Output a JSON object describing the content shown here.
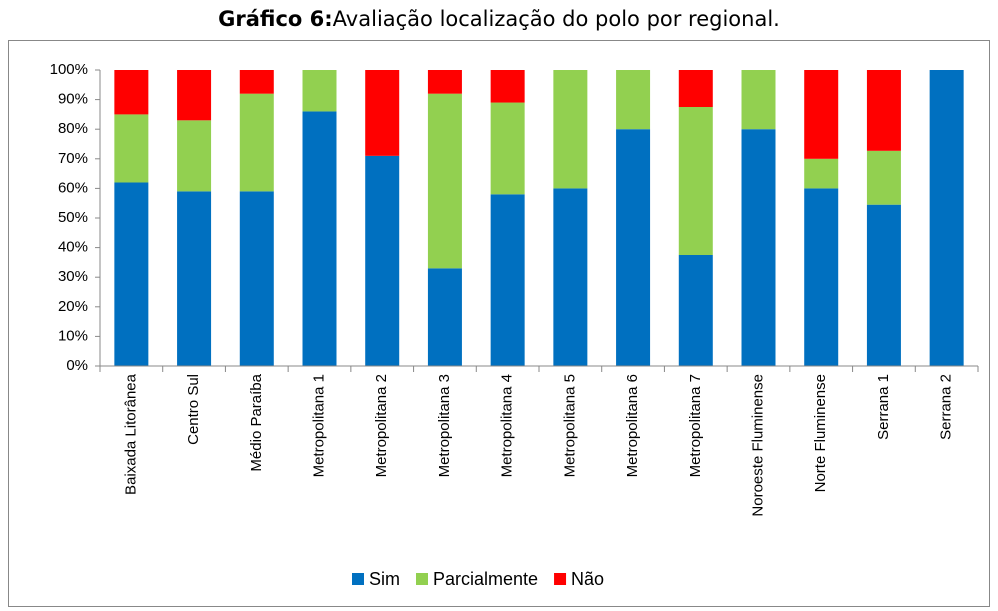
{
  "chart_data": {
    "type": "stacked_bar",
    "title_bold": "Gráfico 6:",
    "title": "Avaliação localização do polo por regional.",
    "categories": [
      "Baixada Litorânea",
      "Centro Sul",
      "Médio Paraíba",
      "Metropolitana 1",
      "Metropolitana 2",
      "Metropolitana 3",
      "Metropolitana 4",
      "Metropolitana 5",
      "Metropolitana 6",
      "Metropolitana 7",
      "Noroeste Fluminense",
      "Norte Fluminense",
      "Serrana 1",
      "Serrana 2"
    ],
    "series": [
      {
        "name": "Sim",
        "color": "#0070c0",
        "values": [
          62,
          59,
          59,
          86,
          71,
          33,
          58,
          60,
          80,
          37.5,
          80,
          60,
          54.5,
          100
        ]
      },
      {
        "name": "Parcialmente",
        "color": "#92d050",
        "values": [
          23,
          24,
          33,
          14,
          0,
          59,
          31,
          40,
          20,
          50,
          20,
          10,
          18.2,
          0
        ]
      },
      {
        "name": "Não",
        "color": "#ff0000",
        "values": [
          15,
          17,
          8,
          0,
          29,
          8,
          11,
          0,
          0,
          12.5,
          0,
          30,
          27.3,
          0
        ]
      }
    ],
    "ylim": [
      0,
      100
    ],
    "yticks": [
      {
        "value": 0,
        "label": "0%"
      },
      {
        "value": 10,
        "label": "10%"
      },
      {
        "value": 20,
        "label": "20%"
      },
      {
        "value": 30,
        "label": "30%"
      },
      {
        "value": 40,
        "label": "40%"
      },
      {
        "value": 50,
        "label": "50%"
      },
      {
        "value": 60,
        "label": "60%"
      },
      {
        "value": 70,
        "label": "70%"
      },
      {
        "value": 80,
        "label": "80%"
      },
      {
        "value": 90,
        "label": "90%"
      },
      {
        "value": 100,
        "label": "100%"
      }
    ],
    "grid": false,
    "legend": "bottom"
  }
}
